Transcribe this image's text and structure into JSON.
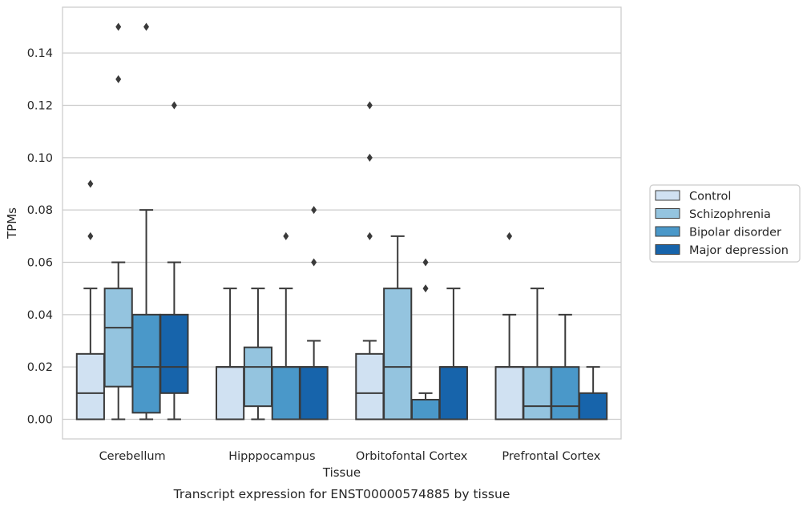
{
  "chart_data": {
    "type": "boxplot",
    "title": "Transcript expression for ENST00000574885 by tissue",
    "xlabel": "Tissue",
    "ylabel": "TPMs",
    "ylim": [
      -0.0075,
      0.1575
    ],
    "yticks": [
      0.0,
      0.02,
      0.04,
      0.06,
      0.08,
      0.1,
      0.12,
      0.14
    ],
    "ytick_labels": [
      "0.00",
      "0.02",
      "0.04",
      "0.06",
      "0.08",
      "0.10",
      "0.12",
      "0.14"
    ],
    "grid": true,
    "legend_position": "right",
    "categories": [
      "Cerebellum",
      "Hipppocampus",
      "Orbitofontal Cortex",
      "Prefrontal Cortex"
    ],
    "series": [
      {
        "name": "Control",
        "color": "#d0e1f2",
        "boxes": [
          {
            "whislo": 0.0,
            "q1": 0.0,
            "med": 0.01,
            "q3": 0.025,
            "whishi": 0.05,
            "fliers": [
              0.07,
              0.09
            ]
          },
          {
            "whislo": 0.0,
            "q1": 0.0,
            "med": 0.02,
            "q3": 0.02,
            "whishi": 0.05,
            "fliers": []
          },
          {
            "whislo": 0.0,
            "q1": 0.0,
            "med": 0.01,
            "q3": 0.025,
            "whishi": 0.03,
            "fliers": [
              0.07,
              0.1,
              0.12
            ]
          },
          {
            "whislo": 0.0,
            "q1": 0.0,
            "med": 0.02,
            "q3": 0.02,
            "whishi": 0.04,
            "fliers": [
              0.07
            ]
          }
        ]
      },
      {
        "name": "Schizophrenia",
        "color": "#94c4df",
        "boxes": [
          {
            "whislo": 0.0,
            "q1": 0.0125,
            "med": 0.035,
            "q3": 0.05,
            "whishi": 0.06,
            "fliers": [
              0.13,
              0.15
            ]
          },
          {
            "whislo": 0.0,
            "q1": 0.005,
            "med": 0.02,
            "q3": 0.0275,
            "whishi": 0.05,
            "fliers": []
          },
          {
            "whislo": 0.0,
            "q1": 0.0,
            "med": 0.02,
            "q3": 0.05,
            "whishi": 0.07,
            "fliers": []
          },
          {
            "whislo": 0.0,
            "q1": 0.0,
            "med": 0.005,
            "q3": 0.02,
            "whishi": 0.05,
            "fliers": []
          }
        ]
      },
      {
        "name": "Bipolar disorder",
        "color": "#4a98c9",
        "boxes": [
          {
            "whislo": 0.0,
            "q1": 0.0025,
            "med": 0.02,
            "q3": 0.04,
            "whishi": 0.08,
            "fliers": [
              0.15
            ]
          },
          {
            "whislo": 0.0,
            "q1": 0.0,
            "med": 0.02,
            "q3": 0.02,
            "whishi": 0.05,
            "fliers": [
              0.07
            ]
          },
          {
            "whislo": 0.0,
            "q1": 0.0,
            "med": 0.0,
            "q3": 0.0075,
            "whishi": 0.01,
            "fliers": [
              0.05,
              0.06
            ]
          },
          {
            "whislo": 0.0,
            "q1": 0.0,
            "med": 0.005,
            "q3": 0.02,
            "whishi": 0.04,
            "fliers": []
          }
        ]
      },
      {
        "name": "Major depression",
        "color": "#1764ab",
        "boxes": [
          {
            "whislo": 0.0,
            "q1": 0.01,
            "med": 0.02,
            "q3": 0.04,
            "whishi": 0.06,
            "fliers": [
              0.12
            ]
          },
          {
            "whislo": 0.0,
            "q1": 0.0,
            "med": 0.02,
            "q3": 0.02,
            "whishi": 0.03,
            "fliers": [
              0.06,
              0.08
            ]
          },
          {
            "whislo": 0.0,
            "q1": 0.0,
            "med": 0.02,
            "q3": 0.02,
            "whishi": 0.05,
            "fliers": []
          },
          {
            "whislo": 0.0,
            "q1": 0.0,
            "med": 0.0,
            "q3": 0.01,
            "whishi": 0.02,
            "fliers": []
          }
        ]
      }
    ]
  }
}
